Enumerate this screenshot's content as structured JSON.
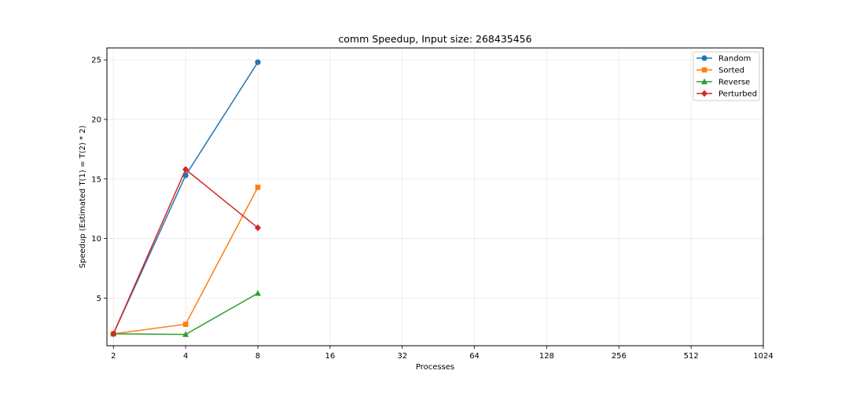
{
  "chart_data": {
    "type": "line",
    "title": "comm Speedup, Input size: 268435456",
    "xlabel": "Processes",
    "ylabel": "Speedup (Estimated T(1) = T(2) * 2)",
    "x_scale": "log2",
    "x_ticks": [
      2,
      4,
      8,
      16,
      32,
      64,
      128,
      256,
      512,
      1024
    ],
    "xlim": [
      2,
      1024
    ],
    "y_ticks": [
      5,
      10,
      15,
      20,
      25
    ],
    "ylim": [
      1.0,
      26.0
    ],
    "grid": true,
    "legend_position": "top-right",
    "series": [
      {
        "name": "Random",
        "marker": "circle",
        "color": "#1f77b4",
        "x": [
          2,
          4,
          8
        ],
        "values": [
          2.0,
          15.3,
          24.8
        ]
      },
      {
        "name": "Sorted",
        "marker": "square",
        "color": "#ff7f0e",
        "x": [
          2,
          4,
          8
        ],
        "values": [
          2.0,
          2.8,
          14.3
        ]
      },
      {
        "name": "Reverse",
        "marker": "triangle",
        "color": "#2ca02c",
        "x": [
          2,
          4,
          8
        ],
        "values": [
          2.0,
          1.95,
          5.4
        ]
      },
      {
        "name": "Perturbed",
        "marker": "diamond",
        "color": "#d62728",
        "x": [
          2,
          4,
          8
        ],
        "values": [
          2.0,
          15.8,
          10.9
        ]
      }
    ]
  }
}
